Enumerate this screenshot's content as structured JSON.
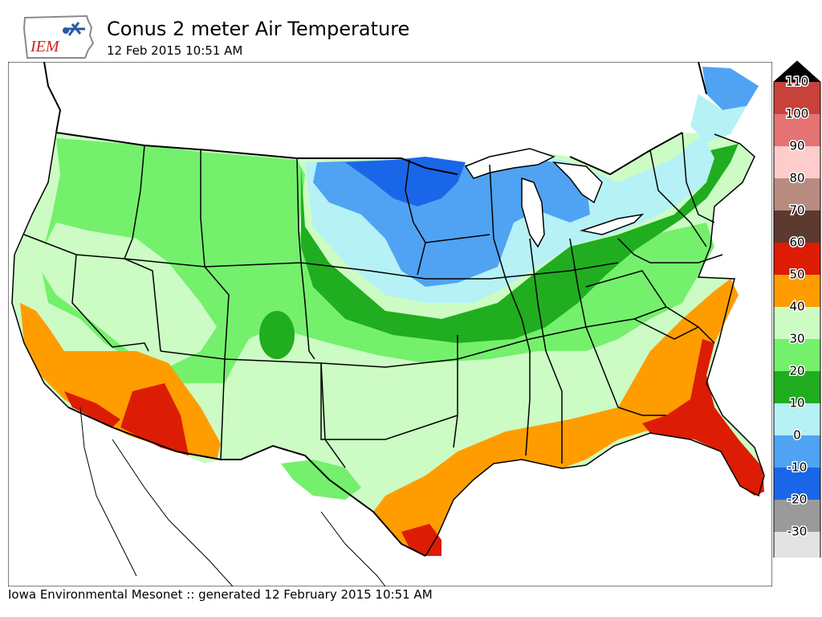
{
  "logo": {
    "text": "IEM"
  },
  "header": {
    "title": "Conus 2 meter Air Temperature",
    "subtitle": "12 Feb 2015 10:51 AM"
  },
  "footer": {
    "text": "Iowa Environmental Mesonet :: generated 12 February 2015 10:51 AM"
  },
  "legend": {
    "levels": [
      {
        "label": "110",
        "color": "#c9413b"
      },
      {
        "label": "100",
        "color": "#e57373"
      },
      {
        "label": "90",
        "color": "#ffcccc"
      },
      {
        "label": "80",
        "color": "#b88b80"
      },
      {
        "label": "70",
        "color": "#5c3a30"
      },
      {
        "label": "60",
        "color": "#dd1c05"
      },
      {
        "label": "50",
        "color": "#ff9d00"
      },
      {
        "label": "40",
        "color": "#ccfcc4"
      },
      {
        "label": "30",
        "color": "#74f06c"
      },
      {
        "label": "20",
        "color": "#20ad20"
      },
      {
        "label": "10",
        "color": "#b5f1f5"
      },
      {
        "label": "0",
        "color": "#50a3f2"
      },
      {
        "label": "-10",
        "color": "#1a66e8"
      },
      {
        "label": "-20",
        "color": "#9a9a9a"
      },
      {
        "label": "-30",
        "color": "#e3e3e3"
      }
    ],
    "overflow_color": "#000000"
  }
}
